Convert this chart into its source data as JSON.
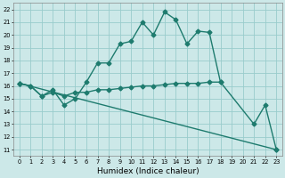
{
  "xlabel": "Humidex (Indice chaleur)",
  "bg_color": "#cce8e8",
  "grid_color": "#99cccc",
  "line_color": "#1e7b6e",
  "markersize": 2.5,
  "linewidth": 1.0,
  "xlim": [
    -0.5,
    23.5
  ],
  "ylim": [
    10.5,
    22.5
  ],
  "yticks": [
    11,
    12,
    13,
    14,
    15,
    16,
    17,
    18,
    19,
    20,
    21,
    22
  ],
  "xticks": [
    0,
    1,
    2,
    3,
    4,
    5,
    6,
    7,
    8,
    9,
    10,
    11,
    12,
    13,
    14,
    15,
    16,
    17,
    18,
    19,
    20,
    21,
    22,
    23
  ],
  "line1_x": [
    0,
    1,
    2,
    3,
    4,
    5,
    6,
    7,
    8,
    9,
    10,
    11,
    12,
    13,
    14,
    15,
    16,
    17,
    18
  ],
  "line1_y": [
    16.2,
    16.0,
    15.2,
    15.7,
    14.5,
    15.0,
    16.3,
    17.8,
    17.8,
    19.3,
    19.5,
    21.0,
    20.0,
    21.8,
    21.2,
    19.3,
    20.3,
    20.2,
    16.3
  ],
  "line2_x": [
    0,
    1,
    2,
    3,
    4,
    5,
    6,
    7,
    8,
    9,
    10,
    11,
    12,
    13,
    14,
    15,
    16,
    17,
    18,
    21,
    22,
    23
  ],
  "line2_y": [
    16.2,
    16.0,
    15.2,
    15.5,
    15.2,
    15.5,
    15.5,
    15.7,
    15.7,
    15.8,
    15.9,
    16.0,
    16.0,
    16.1,
    16.2,
    16.2,
    16.2,
    16.3,
    16.3,
    13.0,
    14.5,
    11.0
  ],
  "line3_x": [
    0,
    23
  ],
  "line3_y": [
    16.2,
    11.0
  ]
}
